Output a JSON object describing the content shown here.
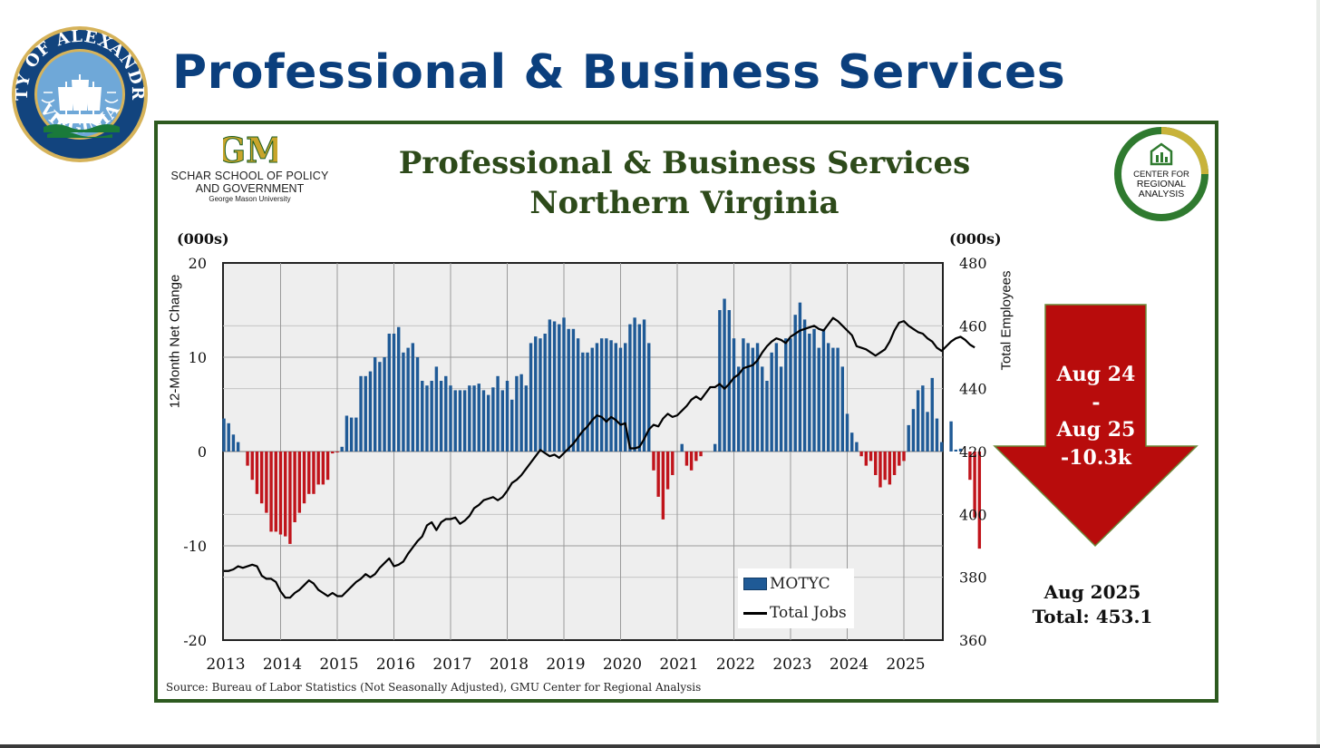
{
  "slide_title": "Professional & Business Services",
  "city_seal": {
    "top_text": "CITY OF ALEXANDRIA",
    "bottom_text": "VIRGINIA"
  },
  "gm_logo": {
    "mark": "GM",
    "line1": "SCHAR SCHOOL OF POLICY",
    "line2": "AND GOVERNMENT",
    "line3": "George Mason University"
  },
  "cra_logo": {
    "line1": "CENTER FOR",
    "line2": "REGIONAL",
    "line3": "ANALYSIS"
  },
  "colors": {
    "title_blue": "#0b3f7d",
    "frame_green": "#2d5a1f",
    "bar_positive": "#1f5a96",
    "bar_negative": "#c0141b",
    "line": "#000000",
    "arrow_red": "#b80c0c",
    "plot_bg": "#eeeeee"
  },
  "chart_data": {
    "type": "bar",
    "title": "Professional & Business Services",
    "subtitle": "Northern Virginia",
    "left_unit": "(000s)",
    "right_unit": "(000s)",
    "ylabel": "12-Month Net Change",
    "y2label": "Total Employees",
    "ylim": [
      -20,
      20
    ],
    "y2lim": [
      360,
      480
    ],
    "yticks": [
      20,
      10,
      0,
      -10,
      -20
    ],
    "y2ticks": [
      480,
      460,
      440,
      420,
      400,
      380,
      360
    ],
    "xticks": [
      "2013",
      "2014",
      "2015",
      "2016",
      "2017",
      "2018",
      "2019",
      "2020",
      "2021",
      "2022",
      "2023",
      "2024",
      "2025"
    ],
    "grid": true,
    "legend_position": "bottom-right",
    "source": "Source: Bureau of Labor Statistics (Not Seasonally Adjusted), GMU Center for Regional Analysis",
    "start": "2013-01",
    "series": [
      {
        "name": "MOTYC",
        "axis": "left",
        "values": [
          3.5,
          3.0,
          1.8,
          1.0,
          0,
          -1.5,
          -3.0,
          -4.5,
          -5.5,
          -6.5,
          -8.5,
          -8.5,
          -8.8,
          -9.0,
          -9.8,
          -7.5,
          -6.5,
          -5.5,
          -4.5,
          -4.5,
          -3.5,
          -3.5,
          -3.0,
          -0.2,
          -0.1,
          0.5,
          3.8,
          3.6,
          3.6,
          8.0,
          8.0,
          8.5,
          10.0,
          9.5,
          10.0,
          12.5,
          12.5,
          13.2,
          10.5,
          11.0,
          11.5,
          10.0,
          7.5,
          7.0,
          7.5,
          9.0,
          7.5,
          8.0,
          7.0,
          6.5,
          6.5,
          6.5,
          7.0,
          7.0,
          7.2,
          6.5,
          6.0,
          6.8,
          8.0,
          6.5,
          7.5,
          5.5,
          8.0,
          8.2,
          7.0,
          11.5,
          12.2,
          12.0,
          12.5,
          14.0,
          13.8,
          13.5,
          14.2,
          13.0,
          13.0,
          12.0,
          10.5,
          10.5,
          11.0,
          11.5,
          12.0,
          12.0,
          11.8,
          11.5,
          11.0,
          11.5,
          13.5,
          14.2,
          13.5,
          14.0,
          11.5,
          -2.0,
          -4.8,
          -7.2,
          -4.0,
          -2.5,
          0,
          0.8,
          -1.5,
          -2.0,
          -1.0,
          -0.5,
          0,
          0,
          0.8,
          15.0,
          16.2,
          15.0,
          12.0,
          9.0,
          12.0,
          11.5,
          11.0,
          11.5,
          9.0,
          7.5,
          10.5,
          11.5,
          9.0,
          12.0,
          12.0,
          14.5,
          15.8,
          14.0,
          12.5,
          13.0,
          11.0,
          13.0,
          11.5,
          11.0,
          11.0,
          9.0,
          4.0,
          2.0,
          1.0,
          -0.5,
          -1.5,
          -1.0,
          -2.5,
          -3.8,
          -3.0,
          -3.5,
          -2.5,
          -1.5,
          -1.0,
          2.8,
          4.5,
          6.5,
          7.0,
          4.2,
          7.8,
          3.5,
          1.0,
          0,
          3.2,
          0.2,
          0.3,
          0,
          -3.0,
          -7.0,
          -10.3
        ]
      },
      {
        "name": "Total Jobs",
        "axis": "right",
        "values": [
          382.0,
          382.0,
          382.5,
          383.5,
          383.0,
          383.5,
          384.0,
          383.5,
          380.5,
          379.5,
          379.5,
          378.5,
          375.5,
          373.5,
          373.5,
          375.0,
          376.0,
          377.5,
          379.0,
          378.0,
          376.0,
          375.0,
          374.0,
          375.0,
          374.0,
          374.0,
          375.5,
          377.0,
          378.5,
          379.5,
          381.0,
          380.0,
          381.0,
          383.0,
          384.5,
          386.0,
          383.5,
          384.0,
          385.0,
          387.5,
          389.5,
          391.5,
          393.0,
          396.5,
          397.5,
          395.0,
          397.5,
          398.5,
          398.5,
          399.0,
          397.0,
          398.0,
          399.5,
          402.0,
          403.0,
          404.5,
          405.0,
          405.5,
          404.5,
          405.5,
          407.5,
          410.0,
          411.0,
          412.5,
          414.5,
          416.5,
          418.5,
          420.5,
          419.5,
          418.5,
          419.0,
          418.0,
          419.5,
          421.0,
          422.5,
          424.5,
          426.5,
          428.0,
          430.0,
          431.5,
          431.0,
          429.5,
          431.0,
          430.0,
          428.5,
          429.0,
          421.0,
          421.0,
          421.5,
          424.0,
          427.0,
          428.5,
          428.0,
          430.5,
          432.0,
          431.0,
          431.5,
          433.0,
          434.5,
          436.5,
          437.5,
          436.5,
          438.5,
          440.5,
          440.5,
          441.5,
          440.0,
          441.5,
          443.5,
          444.5,
          446.5,
          447.0,
          447.5,
          449.0,
          451.5,
          453.5,
          455.0,
          456.0,
          455.5,
          454.5,
          456.5,
          457.5,
          458.5,
          459.0,
          459.5,
          460.0,
          459.0,
          458.5,
          460.5,
          462.5,
          461.5,
          460.0,
          458.5,
          457.0,
          453.5,
          453.0,
          452.5,
          451.5,
          450.5,
          451.5,
          452.5,
          455.0,
          458.5,
          461.0,
          461.5,
          460.0,
          459.0,
          458.0,
          457.5,
          456.0,
          455.0,
          453.0,
          452.0,
          453.5,
          455.0,
          456.0,
          456.5,
          455.5,
          454.0,
          453.1
        ]
      }
    ]
  },
  "callout": {
    "line1": "Aug 24",
    "line2": "-",
    "line3": "Aug 25",
    "line4": "-10.3k"
  },
  "summary": {
    "line1": "Aug 2025",
    "line2": "Total: 453.1"
  }
}
